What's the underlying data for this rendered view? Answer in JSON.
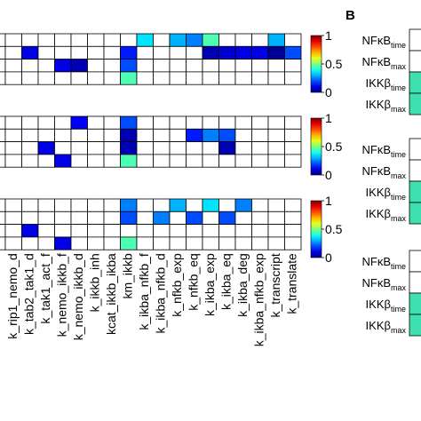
{
  "panel_b_label": "B",
  "colorbar_ticks": [
    "1",
    "0.5",
    "0"
  ],
  "chart_data": {
    "type": "heatmap",
    "vmin": 0,
    "vmax": 1,
    "colormap": "jet",
    "columns": [
      "k_rip1_nemo_d",
      "k_tab2_tak1_d",
      "k_tak1_act_f",
      "k_nemo_ikkb_f",
      "k_nemo_ikkb_d",
      "k_ikkb_inh",
      "kcat_ikkb_ikba",
      "km_ikkb",
      "k_ikba_nfkb_f",
      "k_ikba_nfkb_d",
      "k_nfkb_exp",
      "k_nfkb_eq",
      "k_ikba_exp",
      "k_ikba_eq",
      "k_ikba_deg",
      "k_ikba_nfkb_exp",
      "k_transcript",
      "k_translate"
    ],
    "panels": [
      {
        "rows": 4,
        "cells": [
          {
            "row": 0,
            "col": 8,
            "value": 0.35
          },
          {
            "row": 0,
            "col": 10,
            "value": 0.3
          },
          {
            "row": 0,
            "col": 11,
            "value": 0.25
          },
          {
            "row": 0,
            "col": 12,
            "value": 0.45
          },
          {
            "row": 0,
            "col": 16,
            "value": 0.3
          },
          {
            "row": 1,
            "col": 1,
            "value": 0.1
          },
          {
            "row": 1,
            "col": 7,
            "value": 0.15
          },
          {
            "row": 1,
            "col": 12,
            "value": 0.05
          },
          {
            "row": 1,
            "col": 13,
            "value": 0.08
          },
          {
            "row": 1,
            "col": 14,
            "value": 0.1
          },
          {
            "row": 1,
            "col": 15,
            "value": 0.1
          },
          {
            "row": 1,
            "col": 16,
            "value": 0.02
          },
          {
            "row": 1,
            "col": 17,
            "value": 0.2
          },
          {
            "row": 2,
            "col": 3,
            "value": 0.1
          },
          {
            "row": 2,
            "col": 4,
            "value": 0.05
          },
          {
            "row": 2,
            "col": 7,
            "value": 0.2
          },
          {
            "row": 3,
            "col": 7,
            "value": 0.45
          }
        ]
      },
      {
        "rows": 4,
        "cells": [
          {
            "row": 0,
            "col": 4,
            "value": 0.12
          },
          {
            "row": 0,
            "col": 7,
            "value": 0.2
          },
          {
            "row": 1,
            "col": 7,
            "value": 0.05
          },
          {
            "row": 1,
            "col": 11,
            "value": 0.15
          },
          {
            "row": 1,
            "col": 12,
            "value": 0.25
          },
          {
            "row": 1,
            "col": 13,
            "value": 0.2
          },
          {
            "row": 2,
            "col": 2,
            "value": 0.1
          },
          {
            "row": 2,
            "col": 7,
            "value": 0.05
          },
          {
            "row": 2,
            "col": 13,
            "value": 0.05
          },
          {
            "row": 3,
            "col": 3,
            "value": 0.1
          },
          {
            "row": 3,
            "col": 7,
            "value": 0.45
          }
        ]
      },
      {
        "rows": 4,
        "cells": [
          {
            "row": 0,
            "col": 7,
            "value": 0.25
          },
          {
            "row": 0,
            "col": 10,
            "value": 0.3
          },
          {
            "row": 0,
            "col": 12,
            "value": 0.35
          },
          {
            "row": 0,
            "col": 14,
            "value": 0.25
          },
          {
            "row": 1,
            "col": 7,
            "value": 0.2
          },
          {
            "row": 1,
            "col": 9,
            "value": 0.25
          },
          {
            "row": 1,
            "col": 11,
            "value": 0.2
          },
          {
            "row": 1,
            "col": 13,
            "value": 0.2
          },
          {
            "row": 2,
            "col": 1,
            "value": 0.1
          },
          {
            "row": 3,
            "col": 3,
            "value": 0.1
          },
          {
            "row": 3,
            "col": 7,
            "value": 0.45
          }
        ]
      }
    ],
    "panel_b": {
      "groups": [
        {
          "labels": [
            {
              "main": "NFκB",
              "sub": "time"
            },
            {
              "main": "NFκB",
              "sub": "max"
            },
            {
              "main": "IKKβ",
              "sub": "time"
            },
            {
              "main": "IKKβ",
              "sub": "max"
            }
          ],
          "teal_rows": [
            2,
            3
          ]
        },
        {
          "labels": [
            {
              "main": "NFκB",
              "sub": "time"
            },
            {
              "main": "NFκB",
              "sub": "max"
            },
            {
              "main": "IKKβ",
              "sub": "time"
            },
            {
              "main": "IKKβ",
              "sub": "max"
            }
          ],
          "teal_rows": [
            2,
            3
          ]
        },
        {
          "labels": [
            {
              "main": "NFκB",
              "sub": "time"
            },
            {
              "main": "NFκB",
              "sub": "max"
            },
            {
              "main": "IKKβ",
              "sub": "time"
            },
            {
              "main": "IKKβ",
              "sub": "max"
            }
          ],
          "teal_rows": [
            2,
            3
          ]
        }
      ]
    }
  }
}
